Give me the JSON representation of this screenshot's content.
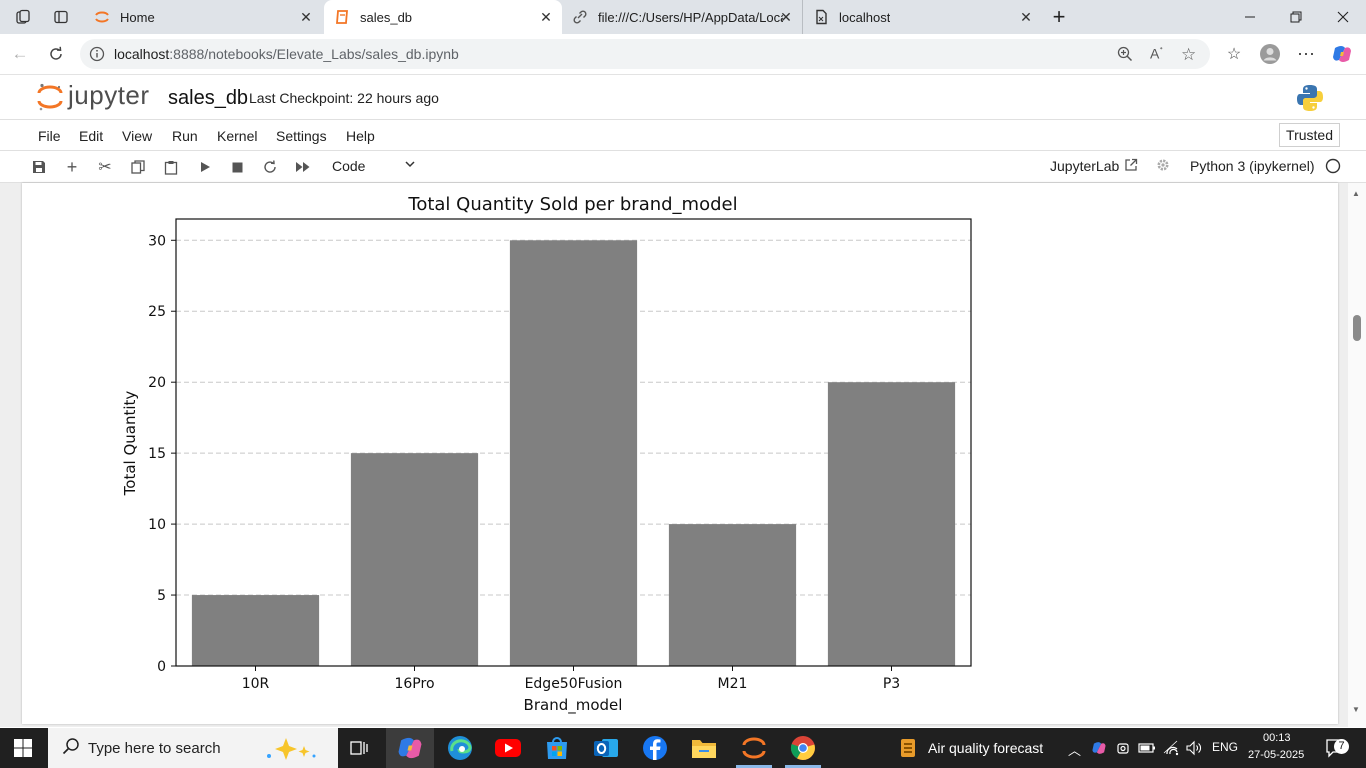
{
  "browser": {
    "tabs": [
      {
        "title": "Home",
        "icon": "jupyter-tab-icon",
        "active": false
      },
      {
        "title": "sales_db",
        "icon": "notebook-tab-icon",
        "active": true
      },
      {
        "title": "file:///C:/Users/HP/AppData/Loca",
        "icon": "file-tab-icon",
        "active": false
      },
      {
        "title": "localhost",
        "icon": "page-tab-icon",
        "active": false
      }
    ],
    "url_host": "localhost",
    "url_rest": ":8888/notebooks/Elevate_Labs/sales_db.ipynb"
  },
  "jupyter": {
    "logo_text": "jupyter",
    "notebook_name": "sales_db",
    "checkpoint": "Last Checkpoint: 22 hours ago",
    "menu": [
      "File",
      "Edit",
      "View",
      "Run",
      "Kernel",
      "Settings",
      "Help"
    ],
    "trusted": "Trusted",
    "cell_type": "Code",
    "jupyterlab_link": "JupyterLab",
    "kernel": "Python 3 (ipykernel)"
  },
  "chart_data": {
    "type": "bar",
    "title": "Total Quantity Sold per brand_model",
    "xlabel": "Brand_model",
    "ylabel": "Total Quantity",
    "categories": [
      "10R",
      "16Pro",
      "Edge50Fusion",
      "M21",
      "P3"
    ],
    "values": [
      5,
      15,
      30,
      10,
      20
    ],
    "ylim": [
      0,
      31.5
    ],
    "yticks": [
      0,
      5,
      10,
      15,
      20,
      25,
      30
    ],
    "grid": "y-dashed",
    "bar_color": "#808080"
  },
  "taskbar": {
    "search_placeholder": "Type here to search",
    "weather": "Air quality forecast",
    "language": "ENG",
    "time": "00:13",
    "date": "27-05-2025",
    "notifications": "7"
  }
}
